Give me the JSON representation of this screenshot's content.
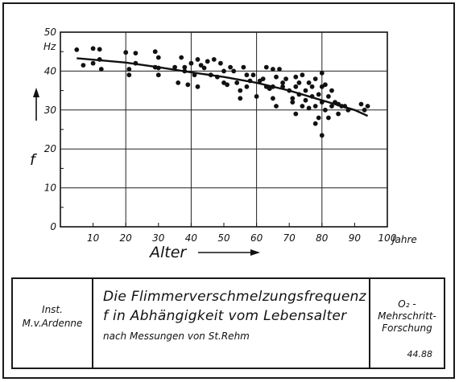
{
  "chart_data": {
    "type": "scatter",
    "title": "",
    "xlabel": "Alter",
    "x_unit": "Jahre",
    "ylabel": "f",
    "y_unit": "Hz",
    "xlim": [
      0,
      100
    ],
    "ylim": [
      0,
      50
    ],
    "x_ticks": [
      "10",
      "20",
      "30",
      "40",
      "50",
      "60",
      "70",
      "80",
      "90",
      "100"
    ],
    "y_ticks": [
      "0",
      "10",
      "20",
      "30",
      "40",
      "50"
    ],
    "grid": true,
    "points": [
      [
        5,
        45.5
      ],
      [
        7,
        41.5
      ],
      [
        10,
        45.8
      ],
      [
        10,
        42
      ],
      [
        12,
        45.6
      ],
      [
        12,
        43
      ],
      [
        12.5,
        40.5
      ],
      [
        20,
        44.8
      ],
      [
        21,
        39
      ],
      [
        21,
        40.5
      ],
      [
        23,
        44.6
      ],
      [
        23,
        42
      ],
      [
        29,
        45
      ],
      [
        29,
        41
      ],
      [
        30,
        39
      ],
      [
        30,
        43.5
      ],
      [
        30,
        40.8
      ],
      [
        35,
        41
      ],
      [
        36,
        37
      ],
      [
        37,
        43.5
      ],
      [
        38,
        41
      ],
      [
        38,
        40
      ],
      [
        39,
        36.5
      ],
      [
        40,
        42
      ],
      [
        41,
        39
      ],
      [
        42,
        43
      ],
      [
        42,
        36
      ],
      [
        43,
        41.5
      ],
      [
        44,
        40.8
      ],
      [
        45,
        42.5
      ],
      [
        46,
        39
      ],
      [
        47,
        43
      ],
      [
        48,
        38.5
      ],
      [
        49,
        42
      ],
      [
        50,
        40
      ],
      [
        50,
        37
      ],
      [
        51,
        36.5
      ],
      [
        52,
        41
      ],
      [
        53,
        40
      ],
      [
        54,
        37
      ],
      [
        55,
        33
      ],
      [
        55,
        35
      ],
      [
        56,
        41
      ],
      [
        57,
        36
      ],
      [
        57,
        39
      ],
      [
        58,
        37.5
      ],
      [
        59,
        39
      ],
      [
        60,
        33.5
      ],
      [
        61,
        37.5
      ],
      [
        62,
        38
      ],
      [
        63,
        36
      ],
      [
        63,
        41
      ],
      [
        64,
        35.5
      ],
      [
        65,
        40.5
      ],
      [
        65,
        36
      ],
      [
        65,
        33
      ],
      [
        66,
        31
      ],
      [
        66,
        38.5
      ],
      [
        67,
        40.5
      ],
      [
        68,
        36
      ],
      [
        68,
        37
      ],
      [
        69,
        38
      ],
      [
        70,
        35
      ],
      [
        71,
        33
      ],
      [
        71,
        32
      ],
      [
        72,
        38.5
      ],
      [
        72,
        36
      ],
      [
        72,
        29
      ],
      [
        73,
        34
      ],
      [
        73,
        37
      ],
      [
        74,
        31
      ],
      [
        74,
        39
      ],
      [
        75,
        32.5
      ],
      [
        75,
        35
      ],
      [
        76,
        37
      ],
      [
        76,
        30.5
      ],
      [
        77,
        33.5
      ],
      [
        77,
        36
      ],
      [
        78,
        26.5
      ],
      [
        78,
        31
      ],
      [
        78,
        38
      ],
      [
        79,
        34
      ],
      [
        79,
        28
      ],
      [
        80,
        36
      ],
      [
        80,
        32
      ],
      [
        80,
        23.5
      ],
      [
        80,
        39.5
      ],
      [
        81,
        30
      ],
      [
        81,
        36.5
      ],
      [
        82,
        33.5
      ],
      [
        82,
        28
      ],
      [
        83,
        31
      ],
      [
        83,
        35
      ],
      [
        84,
        32
      ],
      [
        85,
        29
      ],
      [
        85,
        31.5
      ],
      [
        86,
        31
      ],
      [
        87,
        31
      ],
      [
        88,
        30
      ],
      [
        92,
        31.5
      ],
      [
        93,
        30
      ],
      [
        94,
        31
      ]
    ],
    "trend": [
      [
        5,
        43.3
      ],
      [
        20,
        42.2
      ],
      [
        30,
        41
      ],
      [
        40,
        39.7
      ],
      [
        50,
        38.5
      ],
      [
        60,
        37
      ],
      [
        70,
        35
      ],
      [
        80,
        32.5
      ],
      [
        90,
        30
      ],
      [
        94,
        28.5
      ]
    ]
  },
  "legend": {
    "inst_line1": "Inst.",
    "inst_line2": "M.v.Ardenne",
    "title_line1": "Die Flimmerverschmelzungsfrequenz",
    "title_line2": "f in Abhängigkeit vom Lebensalter",
    "subtitle": "nach Messungen von St.Rehm",
    "o2_line1": "O₂ -",
    "o2_line2": "Mehrschritt-",
    "o2_line3": "Forschung",
    "number": "44.88"
  }
}
